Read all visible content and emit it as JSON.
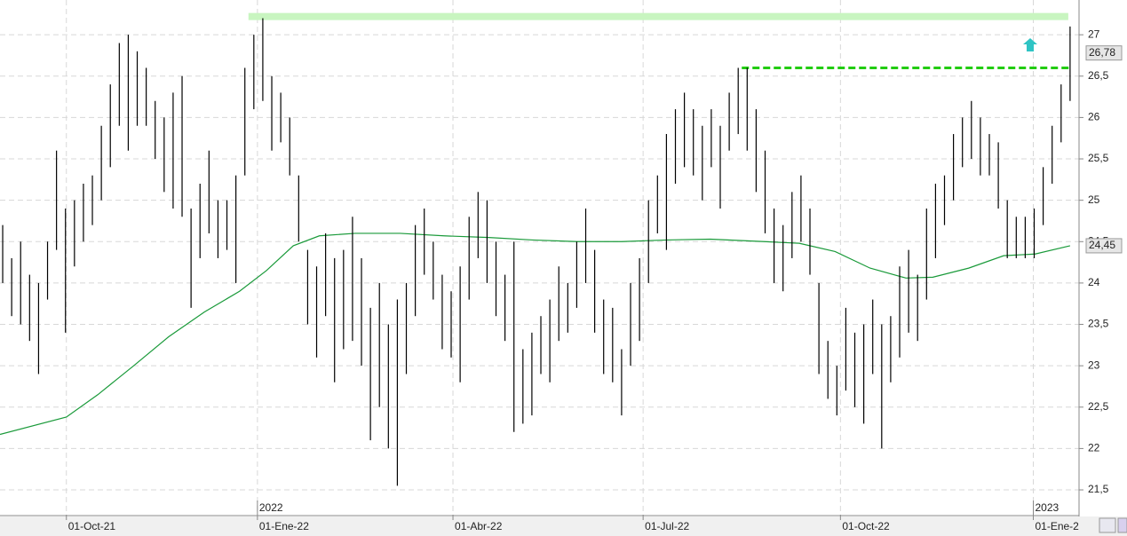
{
  "chart_data": {
    "type": "ohlc",
    "high": [
      24.7,
      24.3,
      24.5,
      24.1,
      24.0,
      24.5,
      25.6,
      24.9,
      25.0,
      25.2,
      25.3,
      25.9,
      26.4,
      26.9,
      27.0,
      26.8,
      26.6,
      26.2,
      26.0,
      26.3,
      26.5,
      24.9,
      25.2,
      25.6,
      25.0,
      25.0,
      25.3,
      26.6,
      27.0,
      27.2,
      26.5,
      26.3,
      26.0,
      25.3,
      24.4,
      24.2,
      24.6,
      24.3,
      24.4,
      24.8,
      24.3,
      23.7,
      24.0,
      23.5,
      23.8,
      24.0,
      24.7,
      24.9,
      24.5,
      24.1,
      23.9,
      24.2,
      24.8,
      25.1,
      25.0,
      24.5,
      24.1,
      24.5,
      23.2,
      23.4,
      23.6,
      23.8,
      24.2,
      24.0,
      24.5,
      24.9,
      24.4,
      23.8,
      23.7,
      23.2,
      24.0,
      24.3,
      25.0,
      25.3,
      25.8,
      26.1,
      26.3,
      26.1,
      25.9,
      26.1,
      25.9,
      26.3,
      26.6,
      26.6,
      26.1,
      25.6,
      24.9,
      24.7,
      25.1,
      25.3,
      24.9,
      24.0,
      23.3,
      23.0,
      23.7,
      23.4,
      23.5,
      23.8,
      23.5,
      23.6,
      24.2,
      24.4,
      24.1,
      24.9,
      25.2,
      25.3,
      25.8,
      26.0,
      26.2,
      26.0,
      25.8,
      25.7,
      25.0,
      24.8,
      24.8,
      24.9,
      25.4,
      25.9,
      26.4,
      27.1
    ],
    "low": [
      24.0,
      23.6,
      23.5,
      23.3,
      22.9,
      23.8,
      24.4,
      23.4,
      24.2,
      24.5,
      24.7,
      25.0,
      25.4,
      25.9,
      25.6,
      25.9,
      25.9,
      25.5,
      25.1,
      24.9,
      24.8,
      23.7,
      24.3,
      24.6,
      24.3,
      24.4,
      24.0,
      25.3,
      26.1,
      26.2,
      25.6,
      25.7,
      25.3,
      24.5,
      23.5,
      23.1,
      23.6,
      22.8,
      23.2,
      23.3,
      23.0,
      22.1,
      22.5,
      22.0,
      21.55,
      22.9,
      23.6,
      24.1,
      23.8,
      23.2,
      23.1,
      22.8,
      23.8,
      24.3,
      24.0,
      23.6,
      23.3,
      22.2,
      22.3,
      22.4,
      22.9,
      22.8,
      23.3,
      23.4,
      23.7,
      24.0,
      23.4,
      22.9,
      22.8,
      22.4,
      23.0,
      23.3,
      24.0,
      24.6,
      24.4,
      25.2,
      25.4,
      25.3,
      25.0,
      25.4,
      24.9,
      25.6,
      25.8,
      25.6,
      25.1,
      24.6,
      24.0,
      23.9,
      24.3,
      24.5,
      24.1,
      22.9,
      22.6,
      22.4,
      22.7,
      22.5,
      22.3,
      22.9,
      22.0,
      22.8,
      23.1,
      23.4,
      23.3,
      23.8,
      24.3,
      24.7,
      25.0,
      25.4,
      25.5,
      25.3,
      25.3,
      24.9,
      24.3,
      24.3,
      24.3,
      24.3,
      24.7,
      25.2,
      25.7,
      26.2
    ],
    "bar_color": "#000000",
    "ma": {
      "color": "#1a9a3a",
      "x": [
        -0.3,
        7.1,
        10.6,
        14.6,
        18.5,
        22.5,
        26.4,
        29.4,
        32.4,
        35.3,
        39.3,
        44.3,
        49.2,
        54.2,
        59.1,
        64.1,
        69,
        74,
        78.9,
        84.9,
        88.8,
        92.8,
        96.7,
        100.7,
        103.7,
        107.7,
        111.6,
        115.1,
        119
      ],
      "values": [
        22.17,
        22.38,
        22.65,
        23.0,
        23.35,
        23.65,
        23.9,
        24.15,
        24.45,
        24.57,
        24.6,
        24.6,
        24.57,
        24.55,
        24.52,
        24.5,
        24.5,
        24.52,
        24.53,
        24.5,
        24.48,
        24.38,
        24.18,
        24.06,
        24.07,
        24.18,
        24.33,
        24.35,
        24.45
      ]
    },
    "levels": [
      {
        "value": 27.22,
        "from": 27.4,
        "to": 118.8,
        "color": "#c8f5c0",
        "style": "solid"
      },
      {
        "value": 26.6,
        "from": 82.4,
        "to": 119,
        "color": "#22cc11",
        "style": "dashed"
      }
    ],
    "price_labels": [
      {
        "value": 26.78,
        "label": "26,78"
      },
      {
        "value": 24.45,
        "label": "24,45"
      }
    ],
    "xlim": [
      -0.3,
      120
    ],
    "ylim": [
      21.2,
      27.42
    ],
    "yticks": [
      {
        "value": 21.5,
        "label": "21,5"
      },
      22,
      {
        "value": 22.5,
        "label": "22,5"
      },
      23,
      {
        "value": 23.5,
        "label": "23,5"
      },
      24,
      {
        "value": 24.5,
        "label": "24,5"
      },
      25,
      {
        "value": 25.5,
        "label": "25,5"
      },
      26,
      {
        "value": 26.5,
        "label": "26,5"
      },
      27
    ],
    "xticks": [
      {
        "value": 7.1,
        "label": "01-Oct-21"
      },
      {
        "value": 28.4,
        "label": "01-Ene-22"
      },
      {
        "value": 50.2,
        "label": "01-Abr-22"
      },
      {
        "value": 71.4,
        "label": "01-Jul-22"
      },
      {
        "value": 93.4,
        "label": "01-Oct-22"
      },
      {
        "value": 114.9,
        "label": "01-Ene-2"
      }
    ],
    "year_marks": [
      {
        "value": 28.4,
        "label": "2022"
      },
      {
        "value": 114.9,
        "label": "2023"
      }
    ],
    "grid": true
  }
}
